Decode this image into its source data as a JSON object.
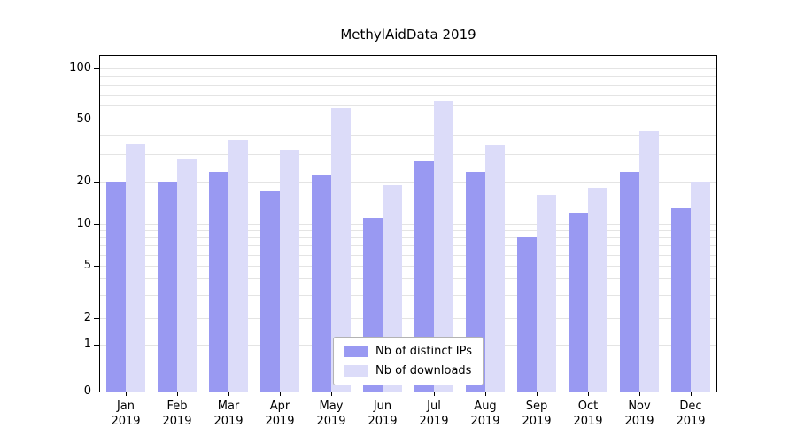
{
  "chart_data": {
    "type": "bar",
    "title": "MethylAidData 2019",
    "categories": [
      "Jan",
      "Feb",
      "Mar",
      "Apr",
      "May",
      "Jun",
      "Jul",
      "Aug",
      "Sep",
      "Oct",
      "Nov",
      "Dec"
    ],
    "x_year": "2019",
    "series": [
      {
        "name": "Nb of distinct IPs",
        "color": "#9999f2",
        "values": [
          20,
          20,
          23,
          17,
          22,
          11,
          27,
          23,
          8,
          12,
          23,
          13
        ]
      },
      {
        "name": "Nb of downloads",
        "color": "#dcdcf9",
        "values": [
          35,
          28,
          37,
          32,
          58,
          19,
          64,
          34,
          16,
          18,
          42,
          20
        ]
      }
    ],
    "yticks": [
      0,
      1,
      2,
      5,
      10,
      20,
      50,
      100
    ],
    "grid_values": [
      1,
      2,
      3,
      4,
      5,
      6,
      7,
      8,
      9,
      10,
      20,
      30,
      40,
      50,
      60,
      70,
      80,
      90,
      100
    ],
    "yscale": "symlog",
    "ylim": [
      0,
      100
    ],
    "grid": "horizontal-minor",
    "legend_position": "lower center"
  }
}
